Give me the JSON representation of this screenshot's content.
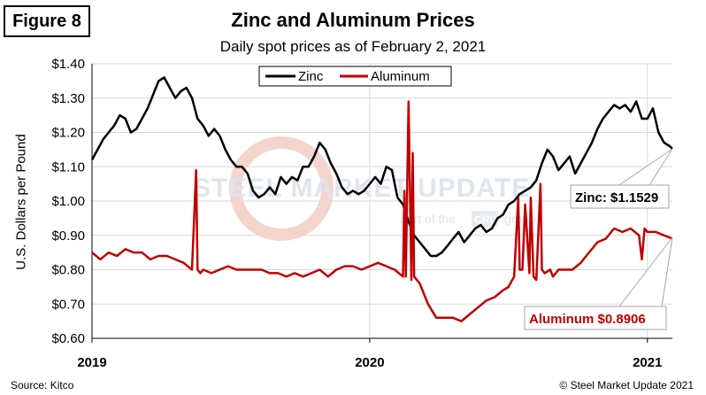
{
  "figure_label": "Figure 8",
  "source": "Source: Kitco",
  "copyright": "© Steel Market Update 2021",
  "watermark": {
    "brand": "STEEL MARKET UPDATE",
    "tagline_prefix": "part of the",
    "tagline_badge": "CRU",
    "tagline_suffix": "group"
  },
  "colors": {
    "zinc": "#000000",
    "aluminum": "#c00000",
    "grid": "#d9d9d9"
  },
  "chart_data": {
    "type": "line",
    "title": "Zinc and Aluminum Prices",
    "subtitle": "Daily spot prices as of February 2, 2021",
    "xlabel": "",
    "ylabel": "U.S. Dollars per Pound",
    "ylim": [
      0.6,
      1.4
    ],
    "xlim": [
      2019.0,
      2021.09
    ],
    "yticks": [
      0.6,
      0.7,
      0.8,
      0.9,
      1.0,
      1.1,
      1.2,
      1.3,
      1.4
    ],
    "ytick_labels": [
      "$0.60",
      "$0.70",
      "$0.80",
      "$0.90",
      "$1.00",
      "$1.10",
      "$1.20",
      "$1.30",
      "$1.40"
    ],
    "xticks": [
      2019.0,
      2020.0,
      2021.0
    ],
    "xtick_labels": [
      "2019",
      "2020",
      "2021"
    ],
    "grid": true,
    "legend": {
      "position": "top-center",
      "entries": [
        "Zinc",
        "Aluminum"
      ]
    },
    "series": [
      {
        "name": "Zinc",
        "color": "#000000",
        "x": [
          2019.0,
          2019.02,
          2019.04,
          2019.06,
          2019.08,
          2019.1,
          2019.12,
          2019.14,
          2019.16,
          2019.18,
          2019.2,
          2019.22,
          2019.24,
          2019.26,
          2019.28,
          2019.3,
          2019.32,
          2019.34,
          2019.36,
          2019.38,
          2019.4,
          2019.42,
          2019.44,
          2019.46,
          2019.48,
          2019.5,
          2019.52,
          2019.54,
          2019.56,
          2019.58,
          2019.6,
          2019.62,
          2019.64,
          2019.66,
          2019.68,
          2019.7,
          2019.72,
          2019.74,
          2019.76,
          2019.78,
          2019.8,
          2019.82,
          2019.84,
          2019.86,
          2019.88,
          2019.9,
          2019.92,
          2019.94,
          2019.96,
          2019.98,
          2020.0,
          2020.02,
          2020.04,
          2020.06,
          2020.08,
          2020.1,
          2020.12,
          2020.14,
          2020.16,
          2020.18,
          2020.2,
          2020.22,
          2020.24,
          2020.26,
          2020.28,
          2020.3,
          2020.32,
          2020.34,
          2020.36,
          2020.38,
          2020.4,
          2020.42,
          2020.44,
          2020.46,
          2020.48,
          2020.5,
          2020.52,
          2020.54,
          2020.56,
          2020.58,
          2020.6,
          2020.62,
          2020.64,
          2020.66,
          2020.68,
          2020.7,
          2020.72,
          2020.74,
          2020.76,
          2020.78,
          2020.8,
          2020.82,
          2020.84,
          2020.86,
          2020.88,
          2020.9,
          2020.92,
          2020.94,
          2020.96,
          2020.98,
          2021.0,
          2021.02,
          2021.04,
          2021.06,
          2021.08,
          2021.09
        ],
        "values": [
          1.12,
          1.15,
          1.18,
          1.2,
          1.22,
          1.25,
          1.24,
          1.2,
          1.21,
          1.24,
          1.27,
          1.31,
          1.35,
          1.36,
          1.33,
          1.3,
          1.32,
          1.33,
          1.3,
          1.24,
          1.22,
          1.19,
          1.21,
          1.19,
          1.15,
          1.12,
          1.1,
          1.1,
          1.08,
          1.03,
          1.01,
          1.02,
          1.04,
          1.02,
          1.07,
          1.05,
          1.07,
          1.06,
          1.1,
          1.1,
          1.13,
          1.17,
          1.15,
          1.11,
          1.08,
          1.04,
          1.02,
          1.03,
          1.02,
          1.03,
          1.05,
          1.07,
          1.05,
          1.1,
          1.09,
          1.01,
          0.99,
          0.94,
          0.9,
          0.88,
          0.86,
          0.84,
          0.84,
          0.85,
          0.87,
          0.89,
          0.91,
          0.88,
          0.9,
          0.92,
          0.93,
          0.91,
          0.92,
          0.95,
          0.96,
          0.99,
          1.0,
          1.02,
          1.03,
          1.04,
          1.06,
          1.11,
          1.15,
          1.13,
          1.09,
          1.11,
          1.13,
          1.08,
          1.11,
          1.14,
          1.17,
          1.21,
          1.24,
          1.26,
          1.28,
          1.27,
          1.28,
          1.26,
          1.29,
          1.24,
          1.24,
          1.27,
          1.2,
          1.17,
          1.16,
          1.1529
        ]
      },
      {
        "name": "Aluminum",
        "color": "#c00000",
        "x": [
          2019.0,
          2019.03,
          2019.06,
          2019.09,
          2019.12,
          2019.15,
          2019.18,
          2019.21,
          2019.24,
          2019.27,
          2019.3,
          2019.33,
          2019.36,
          2019.375,
          2019.38,
          2019.39,
          2019.4,
          2019.43,
          2019.46,
          2019.49,
          2019.52,
          2019.55,
          2019.58,
          2019.61,
          2019.64,
          2019.67,
          2019.7,
          2019.73,
          2019.76,
          2019.79,
          2019.82,
          2019.85,
          2019.88,
          2019.91,
          2019.94,
          2019.97,
          2020.0,
          2020.03,
          2020.06,
          2020.09,
          2020.12,
          2020.125,
          2020.13,
          2020.14,
          2020.15,
          2020.155,
          2020.16,
          2020.18,
          2020.21,
          2020.24,
          2020.27,
          2020.3,
          2020.33,
          2020.36,
          2020.39,
          2020.42,
          2020.45,
          2020.48,
          2020.5,
          2020.52,
          2020.535,
          2020.54,
          2020.55,
          2020.56,
          2020.575,
          2020.58,
          2020.59,
          2020.6,
          2020.615,
          2020.62,
          2020.63,
          2020.65,
          2020.66,
          2020.67,
          2020.68,
          2020.7,
          2020.73,
          2020.76,
          2020.79,
          2020.82,
          2020.85,
          2020.88,
          2020.91,
          2020.94,
          2020.97,
          2020.98,
          2020.99,
          2021.0,
          2021.03,
          2021.06,
          2021.09
        ],
        "values": [
          0.85,
          0.83,
          0.85,
          0.84,
          0.86,
          0.85,
          0.85,
          0.83,
          0.84,
          0.84,
          0.83,
          0.82,
          0.8,
          1.09,
          0.8,
          0.79,
          0.8,
          0.79,
          0.8,
          0.81,
          0.8,
          0.8,
          0.8,
          0.8,
          0.79,
          0.79,
          0.78,
          0.79,
          0.78,
          0.79,
          0.8,
          0.78,
          0.8,
          0.81,
          0.81,
          0.8,
          0.81,
          0.82,
          0.81,
          0.8,
          0.78,
          1.03,
          0.78,
          1.29,
          0.77,
          1.14,
          0.78,
          0.76,
          0.7,
          0.66,
          0.66,
          0.66,
          0.65,
          0.67,
          0.69,
          0.71,
          0.72,
          0.74,
          0.75,
          0.78,
          1.01,
          0.8,
          0.8,
          0.99,
          0.79,
          1.01,
          0.78,
          0.77,
          1.05,
          0.8,
          0.79,
          0.8,
          0.78,
          0.79,
          0.8,
          0.8,
          0.8,
          0.82,
          0.85,
          0.88,
          0.89,
          0.92,
          0.91,
          0.92,
          0.9,
          0.83,
          0.92,
          0.91,
          0.91,
          0.9,
          0.8906
        ]
      }
    ],
    "annotations": [
      {
        "text": "Zinc: $1.1529",
        "series": "Zinc",
        "x": 2021.09,
        "y": 1.1529
      },
      {
        "text": "Aluminum $0.8906",
        "series": "Aluminum",
        "x": 2021.09,
        "y": 0.8906
      }
    ]
  }
}
